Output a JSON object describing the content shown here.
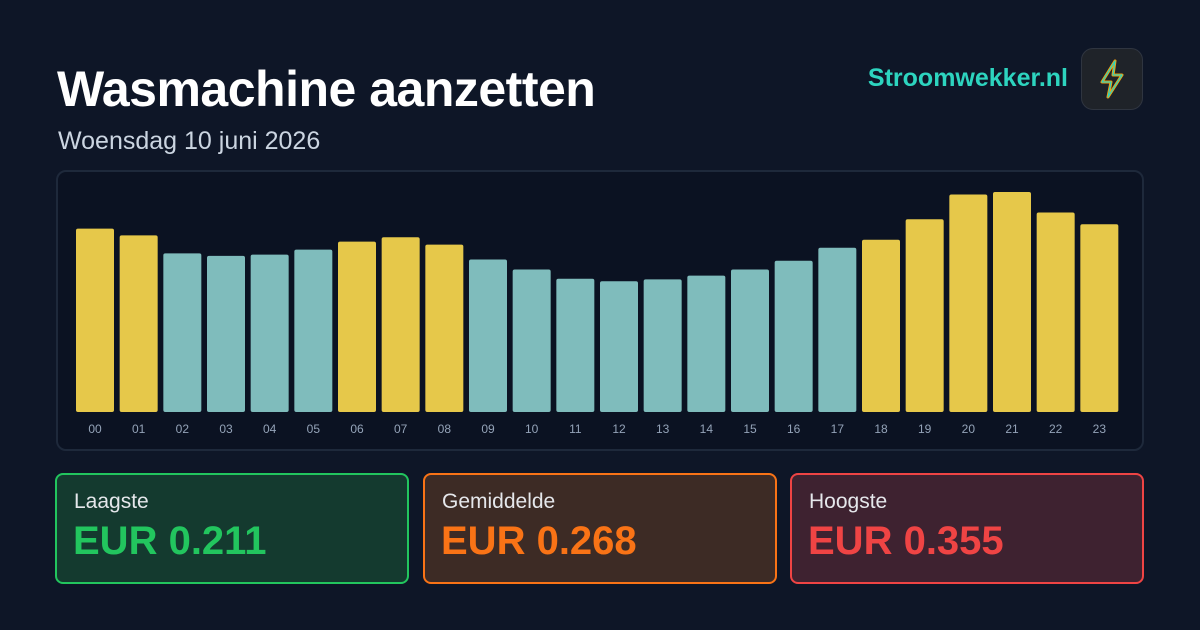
{
  "header": {
    "title": "Wasmachine aanzetten",
    "subtitle": "Woensdag 10 juni 2026",
    "brand": "Stroomwekker.nl"
  },
  "chart_data": {
    "type": "bar",
    "categories": [
      "00",
      "01",
      "02",
      "03",
      "04",
      "05",
      "06",
      "07",
      "08",
      "09",
      "10",
      "11",
      "12",
      "13",
      "14",
      "15",
      "16",
      "17",
      "18",
      "19",
      "20",
      "21",
      "22",
      "23"
    ],
    "values": [
      0.296,
      0.285,
      0.256,
      0.252,
      0.254,
      0.262,
      0.275,
      0.282,
      0.27,
      0.246,
      0.23,
      0.215,
      0.211,
      0.214,
      0.22,
      0.23,
      0.244,
      0.265,
      0.278,
      0.311,
      0.351,
      0.355,
      0.322,
      0.303
    ],
    "colors": [
      "#e6c84a",
      "#e6c84a",
      "#7fbcbc",
      "#7fbcbc",
      "#7fbcbc",
      "#7fbcbc",
      "#e6c84a",
      "#e6c84a",
      "#e6c84a",
      "#7fbcbc",
      "#7fbcbc",
      "#7fbcbc",
      "#7fbcbc",
      "#7fbcbc",
      "#7fbcbc",
      "#7fbcbc",
      "#7fbcbc",
      "#7fbcbc",
      "#e6c84a",
      "#e6c84a",
      "#e6c84a",
      "#e6c84a",
      "#e6c84a",
      "#e6c84a"
    ]
  },
  "stats": [
    {
      "label": "Laagste",
      "value": "EUR 0.211"
    },
    {
      "label": "Gemiddelde",
      "value": "EUR 0.268"
    },
    {
      "label": "Hoogste",
      "value": "EUR 0.355"
    }
  ]
}
